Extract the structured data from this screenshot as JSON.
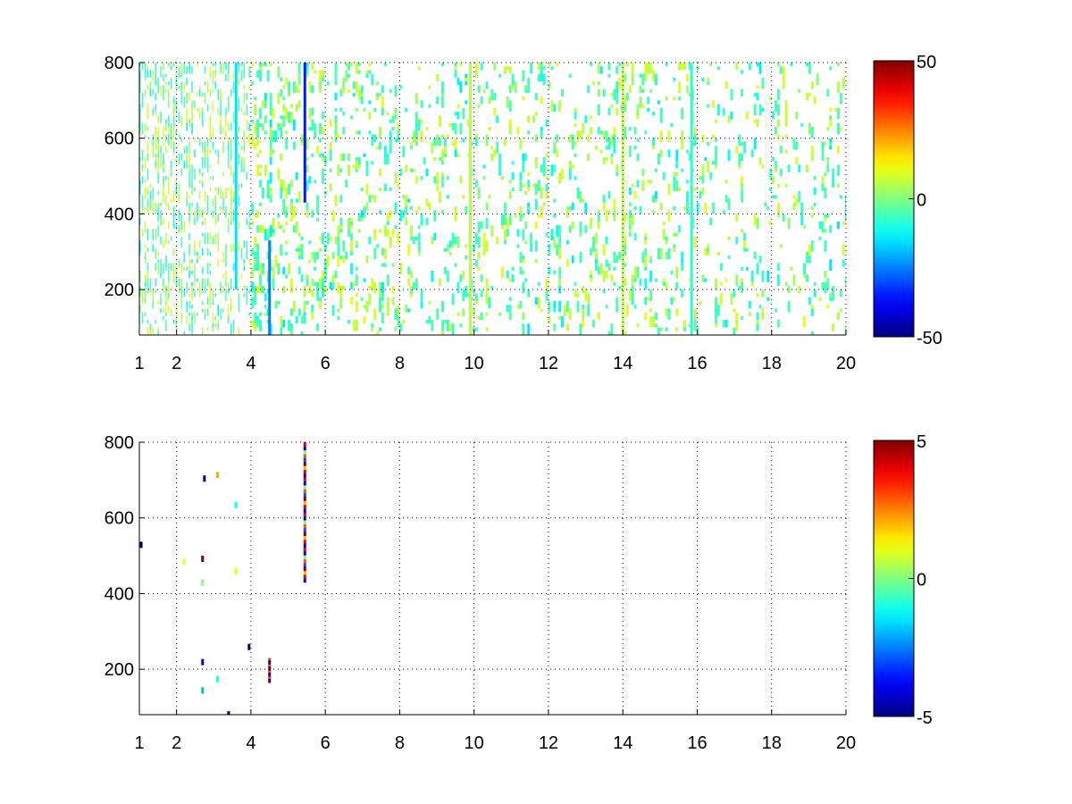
{
  "chart_data": [
    {
      "type": "heatmap",
      "title": "",
      "xlabel": "",
      "ylabel": "",
      "xlim": [
        1,
        20
      ],
      "ylim": [
        80,
        800
      ],
      "x_ticks": [
        1,
        2,
        4,
        6,
        8,
        10,
        12,
        14,
        16,
        18,
        20
      ],
      "y_ticks": [
        200,
        400,
        600,
        800
      ],
      "grid": true,
      "colormap": "jet",
      "colorbar": {
        "min": -50,
        "max": 50,
        "ticks": [
          -50,
          0,
          50
        ]
      },
      "color_range": [
        -50,
        50
      ],
      "density_profile": [
        [
          1,
          0.6
        ],
        [
          2,
          0.55
        ],
        [
          3,
          0.5
        ],
        [
          4,
          0.38
        ],
        [
          5,
          0.3
        ],
        [
          6,
          0.25
        ],
        [
          8,
          0.22
        ],
        [
          10,
          0.2
        ],
        [
          12,
          0.18
        ],
        [
          14,
          0.2
        ],
        [
          16,
          0.18
        ],
        [
          18,
          0.15
        ],
        [
          20,
          0.14
        ]
      ],
      "features": [
        {
          "type": "line",
          "x": 5.45,
          "y_range": [
            430,
            800
          ],
          "value": -35
        },
        {
          "type": "line",
          "x": 4.5,
          "y_range": [
            80,
            330
          ],
          "value": -25
        },
        {
          "type": "line",
          "x": 3.6,
          "y_range": [
            200,
            800
          ],
          "value": -15
        },
        {
          "type": "line",
          "x": 14.0,
          "y_range": [
            80,
            800
          ],
          "value": 6
        },
        {
          "type": "line",
          "x": 15.85,
          "y_range": [
            80,
            800
          ],
          "value": -8
        },
        {
          "type": "line",
          "x": 9.9,
          "y_range": [
            80,
            800
          ],
          "value": 5
        }
      ]
    },
    {
      "type": "heatmap",
      "title": "",
      "xlabel": "",
      "ylabel": "",
      "xlim": [
        1,
        20
      ],
      "ylim": [
        80,
        800
      ],
      "x_ticks": [
        1,
        2,
        4,
        6,
        8,
        10,
        12,
        14,
        16,
        18,
        20
      ],
      "y_ticks": [
        200,
        400,
        600,
        800
      ],
      "grid": true,
      "colormap": "jet",
      "colorbar": {
        "min": -5,
        "max": 5,
        "ticks": [
          -5,
          0,
          5
        ]
      },
      "color_range": [
        -5,
        5
      ],
      "features": [
        {
          "type": "stripe",
          "x": 5.45,
          "y_range": [
            430,
            800
          ],
          "value_pattern": [
            -4,
            4,
            2,
            5,
            -3,
            3,
            0,
            -4,
            4
          ]
        },
        {
          "type": "stripe",
          "x": 4.5,
          "y_range": [
            165,
            230
          ],
          "value_pattern": [
            5,
            -4,
            3
          ]
        },
        {
          "type": "point",
          "x": 3.95,
          "y": 260,
          "value": -5
        },
        {
          "type": "point",
          "x": 2.7,
          "y": 493,
          "value": 5
        },
        {
          "type": "point",
          "x": 2.75,
          "y": 705,
          "value": -5
        },
        {
          "type": "point",
          "x": 2.7,
          "y": 220,
          "value": -4
        },
        {
          "type": "point",
          "x": 2.7,
          "y": 145,
          "value": -2
        },
        {
          "type": "point",
          "x": 2.7,
          "y": 430,
          "value": 0
        },
        {
          "type": "point",
          "x": 3.6,
          "y": 460,
          "value": 1
        },
        {
          "type": "point",
          "x": 3.6,
          "y": 635,
          "value": -1
        },
        {
          "type": "point",
          "x": 3.1,
          "y": 715,
          "value": 2
        },
        {
          "type": "point",
          "x": 2.2,
          "y": 485,
          "value": 1
        },
        {
          "type": "point",
          "x": 3.1,
          "y": 175,
          "value": -1
        },
        {
          "type": "point",
          "x": 1.05,
          "y": 530,
          "value": -5
        },
        {
          "type": "point",
          "x": 3.4,
          "y": 82,
          "value": -5
        }
      ]
    }
  ]
}
